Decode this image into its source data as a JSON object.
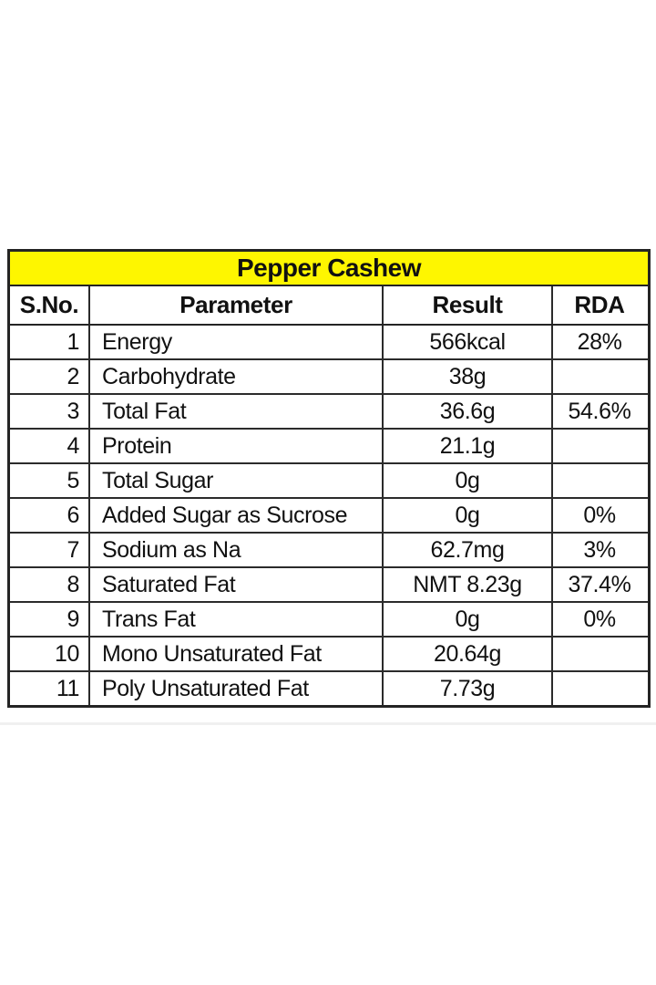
{
  "page": {
    "background": "#ffffff"
  },
  "table": {
    "title": "Pepper Cashew",
    "title_bg": "#fef600",
    "border_color": "#242424",
    "text_color": "#111111",
    "columns": [
      "S.No.",
      "Parameter",
      "Result",
      "RDA"
    ],
    "rows": [
      {
        "sno": "1",
        "parameter": "Energy",
        "result": "566kcal",
        "rda": "28%"
      },
      {
        "sno": "2",
        "parameter": "Carbohydrate",
        "result": "38g",
        "rda": ""
      },
      {
        "sno": "3",
        "parameter": "Total Fat",
        "result": "36.6g",
        "rda": "54.6%"
      },
      {
        "sno": "4",
        "parameter": "Protein",
        "result": "21.1g",
        "rda": ""
      },
      {
        "sno": "5",
        "parameter": "Total Sugar",
        "result": "0g",
        "rda": ""
      },
      {
        "sno": "6",
        "parameter": "Added Sugar as Sucrose",
        "result": "0g",
        "rda": "0%"
      },
      {
        "sno": "7",
        "parameter": "Sodium as Na",
        "result": "62.7mg",
        "rda": "3%"
      },
      {
        "sno": "8",
        "parameter": "Saturated Fat",
        "result": "NMT 8.23g",
        "rda": "37.4%"
      },
      {
        "sno": "9",
        "parameter": "Trans Fat",
        "result": "0g",
        "rda": "0%"
      },
      {
        "sno": "10",
        "parameter": "Mono Unsaturated Fat",
        "result": "20.64g",
        "rda": ""
      },
      {
        "sno": "11",
        "parameter": "Poly Unsaturated Fat",
        "result": "7.73g",
        "rda": ""
      }
    ]
  },
  "chart_data": {
    "type": "table",
    "title": "Pepper Cashew",
    "columns": [
      "S.No.",
      "Parameter",
      "Result",
      "RDA"
    ],
    "rows": [
      [
        "1",
        "Energy",
        "566kcal",
        "28%"
      ],
      [
        "2",
        "Carbohydrate",
        "38g",
        ""
      ],
      [
        "3",
        "Total Fat",
        "36.6g",
        "54.6%"
      ],
      [
        "4",
        "Protein",
        "21.1g",
        ""
      ],
      [
        "5",
        "Total Sugar",
        "0g",
        ""
      ],
      [
        "6",
        "Added Sugar as Sucrose",
        "0g",
        "0%"
      ],
      [
        "7",
        "Sodium as Na",
        "62.7mg",
        "3%"
      ],
      [
        "8",
        "Saturated Fat",
        "NMT 8.23g",
        "37.4%"
      ],
      [
        "9",
        "Trans Fat",
        "0g",
        "0%"
      ],
      [
        "10",
        "Mono Unsaturated Fat",
        "20.64g",
        ""
      ],
      [
        "11",
        "Poly Unsaturated Fat",
        "7.73g",
        ""
      ]
    ],
    "layout_hints": {
      "title_band_color": "#fef600",
      "grid": "on",
      "header_bold": true
    }
  }
}
